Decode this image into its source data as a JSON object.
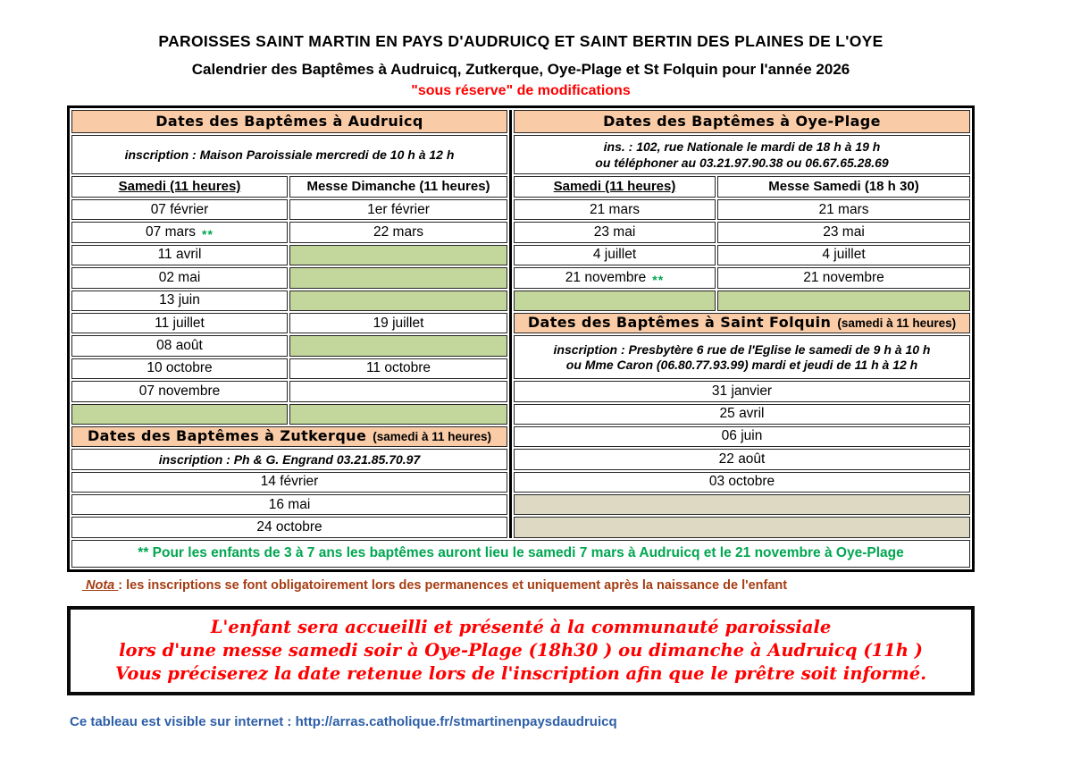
{
  "header": {
    "line1": "PAROISSES SAINT MARTIN EN PAYS D'AUDRUICQ ET SAINT BERTIN DES PLAINES DE L'OYE",
    "line2": "Calendrier des Baptêmes à Audruicq, Zutkerque, Oye-Plage et St Folquin pour l'année 2026",
    "line3": "\"sous réserve\" de modifications"
  },
  "audruicq": {
    "title": "Dates des Baptêmes à Audruicq",
    "inscription": "inscription : Maison Paroissiale mercredi de 10 h  à 12 h",
    "col_samedi": "Samedi (11 heures)",
    "col_messe": "Messe Dimanche (11 heures)",
    "rows": [
      {
        "samedi": "07 février",
        "messe": "1er février"
      },
      {
        "samedi": "07 mars",
        "samedi_marker": "**",
        "messe": "22 mars"
      },
      {
        "samedi": "11 avril",
        "messe": ""
      },
      {
        "samedi": "02 mai",
        "messe": ""
      },
      {
        "samedi": "13 juin",
        "messe": ""
      },
      {
        "samedi": "11 juillet",
        "messe": "19 juillet"
      },
      {
        "samedi": "08 août",
        "messe": ""
      },
      {
        "samedi": "10 octobre",
        "messe": "11 octobre"
      },
      {
        "samedi": "07 novembre",
        "messe": ""
      }
    ]
  },
  "zutkerque": {
    "title": "Dates des Baptêmes à Zutkerque",
    "subtitle": "(samedi à 11 heures)",
    "inscription": "inscription : Ph & G. Engrand 03.21.85.70.97",
    "dates": [
      "14 février",
      "16 mai",
      "24 octobre"
    ]
  },
  "oyeplage": {
    "title": "Dates des Baptêmes à Oye-Plage",
    "inscription_line1": "ins. :  102, rue Nationale le mardi de 18 h à 19 h",
    "inscription_line2": "ou téléphoner au 03.21.97.90.38 ou 06.67.65.28.69",
    "col_samedi": "Samedi (11 heures)",
    "col_messe": "Messe Samedi (18 h 30)",
    "rows": [
      {
        "samedi": "21 mars",
        "messe": "21 mars"
      },
      {
        "samedi": "23 mai",
        "messe": "23 mai"
      },
      {
        "samedi": "4 juillet",
        "messe": "4 juillet"
      },
      {
        "samedi": "21 novembre",
        "samedi_marker": "**",
        "messe": "21 novembre"
      }
    ]
  },
  "saintfolquin": {
    "title": "Dates des Baptêmes à Saint Folquin",
    "subtitle": "(samedi à 11 heures)",
    "inscription_line1": "inscription : Presbytère 6 rue de l'Eglise le samedi de 9 h à 10 h",
    "inscription_line2": "ou Mme Caron (06.80.77.93.99) mardi et jeudi de 11 h à 12 h",
    "dates": [
      "31 janvier",
      "25 avril",
      "06 juin",
      "22 août",
      "03 octobre"
    ]
  },
  "note": {
    "text": "** Pour les enfants de 3 à 7 ans les baptêmes auront lieu le samedi 7 mars à Audruicq et le 21 novembre à Oye-Plage"
  },
  "nota": {
    "label": " Nota ",
    "text": ": les inscriptions se font obligatoirement lors des permanences et uniquement après la naissance de l'enfant"
  },
  "script_box": {
    "line1": "L'enfant sera accueilli et présenté à la communauté paroissiale",
    "line2": "lors d'une messe samedi soir à Oye-Plage (18h30 ) ou dimanche à Audruicq (11h )",
    "line3": "Vous préciserez la date retenue lors de l'inscription afin que le prêtre soit informé."
  },
  "footer": {
    "internet": "Ce tableau est visible sur internet : http://arras.catholique.fr/stmartinenpaysdaudruicq"
  },
  "colors": {
    "peach_header": "#F9CBA6",
    "green_cell": "#C3D69B",
    "tan_cell": "#DDD9C3",
    "note_green": "#00A650",
    "nota_brown": "#A53D12",
    "accent_red": "#FF0000",
    "footer_blue": "#2D5FA8"
  }
}
